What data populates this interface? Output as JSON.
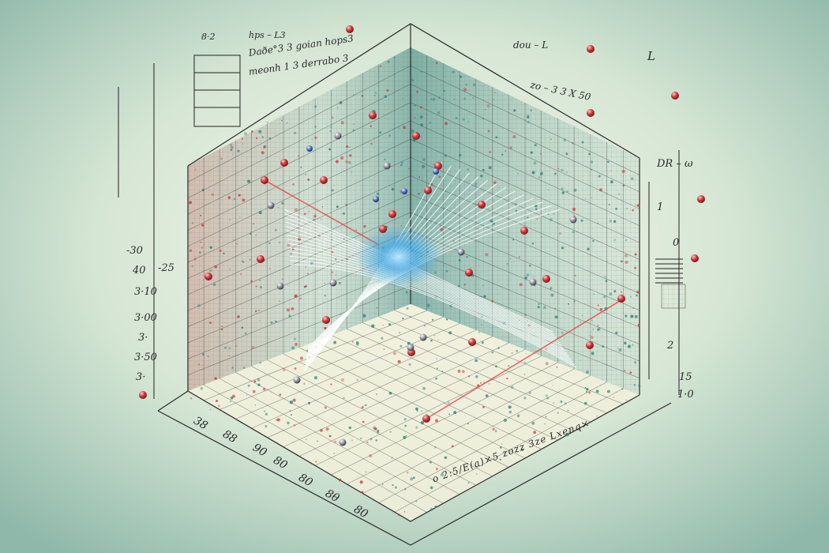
{
  "colors": {
    "background_center": "#f4f7ea",
    "background_edge": "#8fb8aa",
    "grid": "#3c3c3c",
    "teal_dots": "#2f7f78",
    "red_dots": "#c23a3a",
    "blue_glow": "#3aa6e6",
    "lines": "#ffffff",
    "red_line": "#e04a4a"
  },
  "left_axis_ticks": [
    "-30",
    "40",
    "-25",
    "3·10",
    "3·00",
    "3·",
    "3·50",
    "3·"
  ],
  "front_left_ticks": [
    "38",
    "88",
    "90",
    "80",
    "80",
    "8θ",
    "80"
  ],
  "equations_top_left": [
    "8·2",
    "hps – L3",
    "Daðe°3 3 goian hops3",
    "meonh 1 3 derrabo 3"
  ],
  "equations_top_right": [
    "dou – L",
    "L",
    "zo – 3 3 X 50",
    "DR – ω"
  ],
  "right_axis_ticks": [
    "1",
    "0",
    "2",
    "15",
    "1·0"
  ],
  "bottom_right_text": "o 2:5/E(a)×5 zozz 3ze Lxenq×"
}
